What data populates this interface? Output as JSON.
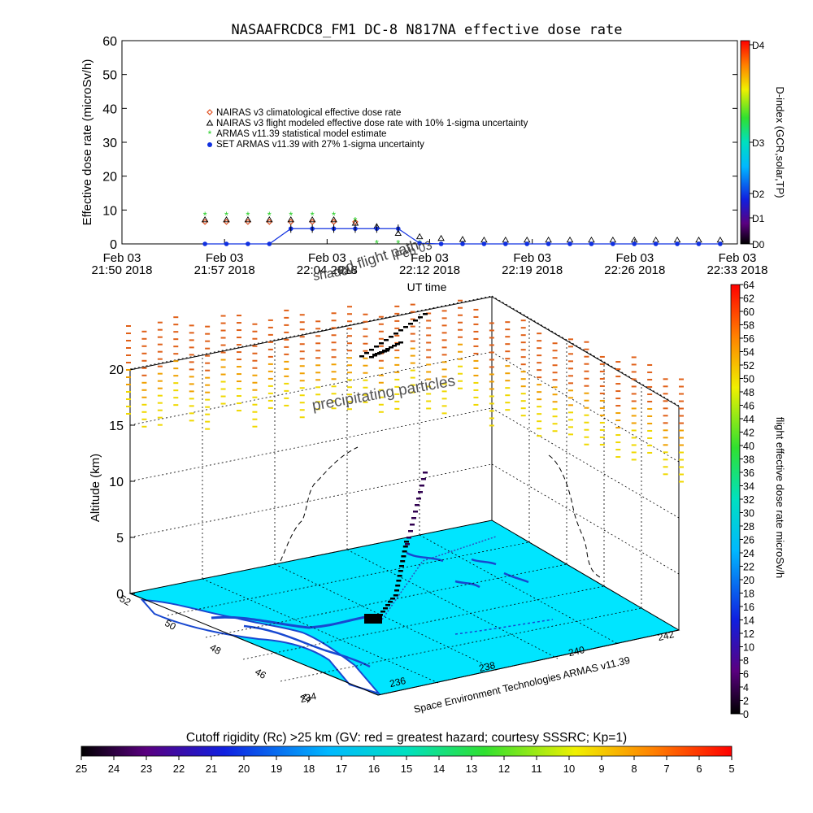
{
  "chart_data": [
    {
      "type": "scatter",
      "title": "NASAAFRCDC8_FM1 DC-8   N817NA effective dose rate",
      "ylabel": "Effective dose rate (microSv/h)",
      "xlabel": "UT time",
      "ylim": [
        0,
        60
      ],
      "yticks": [
        "0",
        "10",
        "20",
        "30",
        "40",
        "50",
        "60"
      ],
      "xticks": [
        {
          "line1": "Feb 03",
          "line2": "21:50 2018"
        },
        {
          "line1": "Feb 03",
          "line2": "21:57 2018"
        },
        {
          "line1": "Feb 03",
          "line2": "22:04 2018"
        },
        {
          "line1": "Feb 03",
          "line2": "22:12 2018"
        },
        {
          "line1": "Feb 03",
          "line2": "22:19 2018"
        },
        {
          "line1": "Feb 03",
          "line2": "22:26 2018"
        },
        {
          "line1": "Feb 03",
          "line2": "22:33 2018"
        }
      ],
      "x_minutes_range": [
        0,
        43
      ],
      "legend": [
        {
          "label": "NAIRAS v3 climatological effective dose rate",
          "color": "#e05020",
          "marker": "diamond"
        },
        {
          "label": "NAIRAS v3 flight modeled effective dose rate with 10% 1-sigma uncertainty",
          "color": "#000000",
          "marker": "triangle"
        },
        {
          "label": "ARMAS v11.39 statistical model estimate",
          "color": "#22cc22",
          "marker": "star"
        },
        {
          "label": "SET ARMAS v11.39 with 27% 1-sigma uncertainty",
          "color": "#1030e0",
          "marker": "dot"
        }
      ],
      "series": [
        {
          "name": "NAIRAS v3 climatological effective dose rate",
          "x": [
            5.8,
            7.3,
            8.8,
            10.3,
            11.8,
            13.3,
            14.8,
            16.3
          ],
          "y": [
            6.5,
            6.5,
            6.5,
            6.5,
            6.5,
            6.5,
            6.5,
            6.5
          ]
        },
        {
          "name": "NAIRAS v3 flight modeled effective dose rate with 10% 1-sigma uncertainty",
          "x": [
            5.8,
            7.3,
            8.8,
            10.3,
            11.8,
            13.3,
            14.8,
            16.3,
            17.8,
            19.3,
            20.8,
            22.3,
            23.8,
            25.3,
            26.8,
            28.3,
            29.8,
            31.3,
            32.8,
            34.3,
            35.8,
            37.3,
            38.8,
            40.3,
            41.8
          ],
          "y": [
            7,
            7,
            7,
            7,
            7,
            7,
            7,
            6,
            5,
            3,
            2,
            1.5,
            1.2,
            1,
            1,
            1,
            1,
            1,
            1,
            1,
            1,
            1,
            1,
            1,
            1
          ]
        },
        {
          "name": "ARMAS v11.39 statistical model estimate",
          "x": [
            5.8,
            7.3,
            8.8,
            10.3,
            11.8,
            13.3,
            14.8,
            16.3,
            17.8,
            19.3,
            20.8
          ],
          "y": [
            8.5,
            8.5,
            8.5,
            8.5,
            8.5,
            8.5,
            8.5,
            7,
            0.2,
            0.2,
            0.2
          ]
        },
        {
          "name": "SET ARMAS v11.39 with 27% 1-sigma uncertainty",
          "x": [
            5.8,
            7.3,
            8.8,
            10.3,
            11.8,
            13.3,
            14.8,
            16.3,
            17.8,
            19.3,
            20.8,
            22.3,
            23.8,
            25.3,
            26.8,
            28.3,
            29.8,
            31.3,
            32.8,
            34.3,
            35.8,
            37.3,
            38.8,
            40.3,
            41.8
          ],
          "y": [
            0,
            0,
            0,
            0,
            4.5,
            4.5,
            4.5,
            4.5,
            4.5,
            4.5,
            0.2,
            0,
            0,
            0,
            0,
            0,
            0,
            0,
            0,
            0,
            0,
            0,
            0,
            0,
            0
          ]
        }
      ]
    },
    {
      "type": "scatter",
      "ylabel": "Altitude (km)",
      "zticks": [
        "0",
        "5",
        "10",
        "15",
        "20"
      ],
      "lat_ticks": [
        "52",
        "50",
        "48",
        "46",
        "44"
      ],
      "lon_ticks": [
        "234",
        "236",
        "238",
        "240",
        "242"
      ],
      "annotations": [
        "shadow",
        "ed flight path",
        "Feb 03",
        "precipitating particles"
      ],
      "credit": "Space Environment Technologies ARMAS v11.39",
      "colorbar": {
        "label": "flight effective dose rate microSv/h",
        "ticks": [
          "0",
          "2",
          "4",
          "6",
          "8",
          "10",
          "12",
          "14",
          "16",
          "18",
          "20",
          "22",
          "24",
          "26",
          "28",
          "30",
          "32",
          "34",
          "36",
          "38",
          "40",
          "42",
          "44",
          "46",
          "48",
          "50",
          "52",
          "54",
          "56",
          "58",
          "60",
          "62",
          "64"
        ]
      }
    },
    {
      "type": "heatmap",
      "title": "Cutoff rigidity (Rc) >25 km (GV: red = greatest hazard; courtesy SSSRC; Kp=1)",
      "ticks": [
        "25",
        "24",
        "23",
        "22",
        "21",
        "20",
        "19",
        "18",
        "17",
        "16",
        "15",
        "14",
        "13",
        "12",
        "11",
        "10",
        "9",
        "8",
        "7",
        "6",
        "5"
      ]
    }
  ],
  "dindex": {
    "label": "D-index (GCR,solar,TP)",
    "ticks": [
      "D0",
      "D1",
      "D2",
      "D3",
      "D4"
    ]
  },
  "colors": {
    "surface": "#00e5ff",
    "coast": "#1848d0",
    "dose_high": "#e06018",
    "dose_mid": "#f0c800"
  }
}
